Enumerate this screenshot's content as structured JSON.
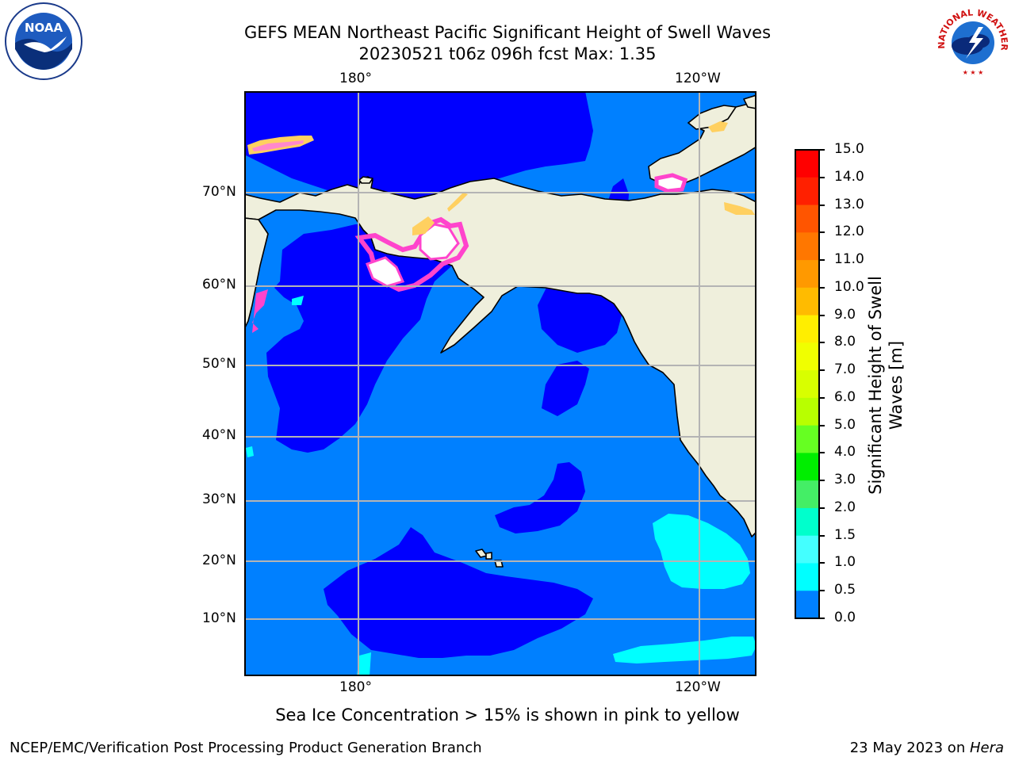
{
  "title": {
    "line1": "GEFS MEAN Northeast Pacific Significant Height of Swell Waves",
    "line2": "20230521 t06z 096h fcst   Max: 1.35"
  },
  "map": {
    "lon_labels": [
      "180°",
      "120°W"
    ],
    "lat_labels": [
      "70°N",
      "60°N",
      "50°N",
      "40°N",
      "30°N",
      "20°N",
      "10°N"
    ],
    "colors": {
      "ocean_0_0_5": "#0000ff",
      "ocean_0_5_1_0": "#0080ff",
      "ocean_1_0_1_5": "#00ffff",
      "land": "#efefdc",
      "ice_pink": "#ff44cc",
      "ice_yellow": "#ffd060",
      "grid": "#b4b4b4"
    }
  },
  "colorbar": {
    "label_line1": "Significant Height of Swell",
    "label_line2": "Waves [m]",
    "ticks": [
      "15.0",
      "14.0",
      "13.0",
      "12.0",
      "11.0",
      "10.0",
      "9.0",
      "8.0",
      "7.0",
      "6.0",
      "5.0",
      "4.0",
      "3.0",
      "2.0",
      "1.5",
      "1.0",
      "0.5",
      "0.0"
    ],
    "colors": [
      "#ff0000",
      "#ff2000",
      "#ff5500",
      "#ff7700",
      "#ff9900",
      "#ffbb00",
      "#ffee00",
      "#f0ff00",
      "#d8ff00",
      "#b8ff00",
      "#66ff22",
      "#00ee00",
      "#44ee66",
      "#00ffcc",
      "#44ffff",
      "#00ffff",
      "#0080ff",
      "#0000ff"
    ]
  },
  "logos": {
    "noaa_text": "NOAA",
    "nws_text": "NATIONAL WEATHER SERVICE"
  },
  "ice_note": "Sea Ice Concentration > 15% is shown in pink to yellow",
  "footer": {
    "left": "NCEP/EMC/Verification Post Processing Product Generation Branch",
    "right_prefix": "23 May 2023 on ",
    "right_machine": "Hera"
  }
}
